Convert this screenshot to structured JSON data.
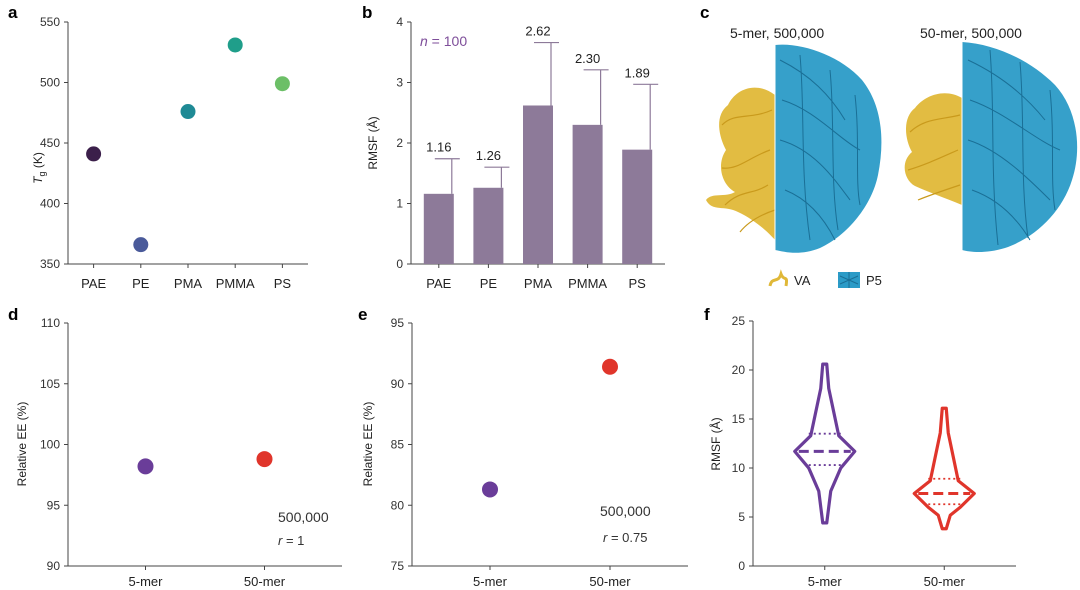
{
  "panels": {
    "a": "a",
    "b": "b",
    "c": "c",
    "d": "d",
    "e": "e",
    "f": "f"
  },
  "chart_data": [
    {
      "id": "a",
      "type": "scatter",
      "ylabel_main": "T",
      "ylabel_sub": "g",
      "ylabel_unit": " (K)",
      "ylim": [
        350,
        550
      ],
      "yticks": [
        "350",
        "400",
        "450",
        "500",
        "550"
      ],
      "yticks_values": [
        350,
        400,
        450,
        500,
        550
      ],
      "categories": [
        "PAE",
        "PE",
        "PMA",
        "PMMA",
        "PS"
      ],
      "values": [
        441,
        366,
        476,
        531,
        499
      ],
      "colors": [
        "#3b1f4a",
        "#4a5a9a",
        "#1f8a95",
        "#1f9e8a",
        "#6cbf67"
      ]
    },
    {
      "id": "b",
      "type": "bar",
      "ylabel": "RMSF (Å)",
      "ylim": [
        0,
        4
      ],
      "yticks": [
        "0",
        "1",
        "2",
        "3",
        "4"
      ],
      "yticks_values": [
        0,
        1,
        2,
        3,
        4
      ],
      "categories": [
        "PAE",
        "PE",
        "PMA",
        "PMMA",
        "PS"
      ],
      "values": [
        1.16,
        1.26,
        2.62,
        2.3,
        1.89
      ],
      "value_labels": [
        "1.16",
        "1.26",
        "2.62",
        "2.30",
        "1.89"
      ],
      "errors": [
        0.58,
        0.34,
        1.04,
        0.91,
        1.08
      ],
      "annotation_n": "n",
      "annotation_rest": " = 100",
      "bar_color": "#8d7a99",
      "annotation_color": "#7e4e9a"
    },
    {
      "id": "d",
      "type": "scatter",
      "ylabel": "Relative EE (%)",
      "ylim": [
        90,
        110
      ],
      "yticks": [
        "90",
        "95",
        "100",
        "105",
        "110"
      ],
      "yticks_values": [
        90,
        95,
        100,
        105,
        110
      ],
      "categories": [
        "5-mer",
        "50-mer"
      ],
      "values": [
        98.2,
        98.8
      ],
      "colors": [
        "#6a3d99",
        "#e0352b"
      ],
      "note1": "500,000",
      "note2_r": "r",
      "note2_rest": " = 1"
    },
    {
      "id": "e",
      "type": "scatter",
      "ylabel": "Relative EE (%)",
      "ylim": [
        75,
        95
      ],
      "yticks": [
        "75",
        "80",
        "85",
        "90",
        "95"
      ],
      "yticks_values": [
        75,
        80,
        85,
        90,
        95
      ],
      "categories": [
        "5-mer",
        "50-mer"
      ],
      "values": [
        81.3,
        91.4
      ],
      "colors": [
        "#6a3d99",
        "#e0352b"
      ],
      "note1": "500,000",
      "note2_r": "r",
      "note2_rest": " = 0.75"
    },
    {
      "id": "f",
      "type": "violin",
      "ylabel": "RMSF (Å)",
      "ylim": [
        0,
        25
      ],
      "yticks": [
        "0",
        "5",
        "10",
        "15",
        "20",
        "25"
      ],
      "yticks_values": [
        0,
        5,
        10,
        15,
        20,
        25
      ],
      "categories": [
        "5-mer",
        "50-mer"
      ],
      "medians": [
        11.7,
        7.4
      ],
      "q1": [
        10.3,
        6.3
      ],
      "q3": [
        13.5,
        8.9
      ],
      "min": [
        4.4,
        3.8
      ],
      "max": [
        20.6,
        16.1
      ],
      "colors": [
        "#6a3d99",
        "#e0352b"
      ]
    }
  ],
  "panel_c": {
    "title_left": "5-mer, 500,000",
    "title_right": "50-mer, 500,000",
    "legend": [
      {
        "label": "VA",
        "color": "#e0b838"
      },
      {
        "label": "P5",
        "color": "#2b9bc7"
      }
    ]
  }
}
